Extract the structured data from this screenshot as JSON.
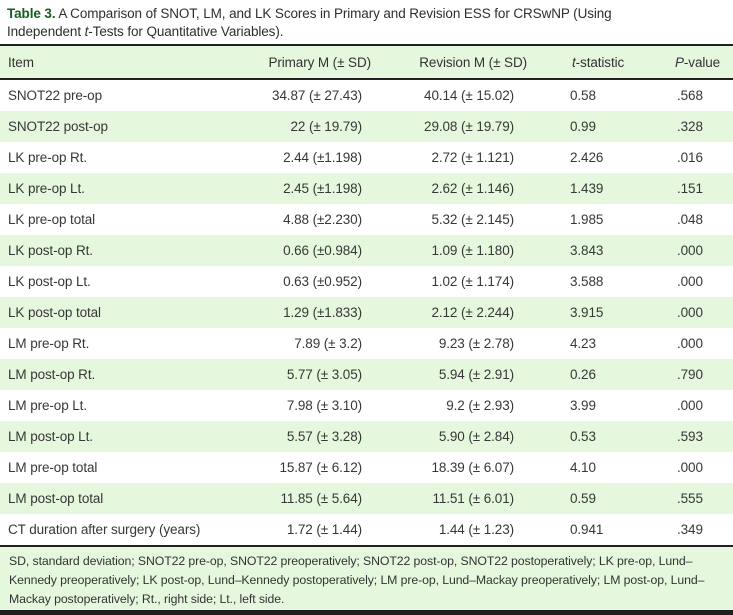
{
  "caption": {
    "label": "Table 3.",
    "before_italic": " A Comparison of SNOT, LM, and LK Scores in Primary and Revision ESS for CRSwNP (Using Independent ",
    "italic": "t",
    "after_italic": "-Tests for Quantitative Variables)."
  },
  "table": {
    "headers": {
      "item": "Item",
      "primary": "Primary M (± SD)",
      "revision": "Revision M (± SD)",
      "t_italic": "t",
      "t_rest": "-statistic",
      "p_italic": "P",
      "p_rest": "-value"
    },
    "rows": [
      {
        "item": "SNOT22 pre-op",
        "primary": "34.87 (± 27.43)",
        "revision": "40.14 (± 15.02)",
        "t": "0.58",
        "p": ".568"
      },
      {
        "item": "SNOT22 post-op",
        "primary": "22 (± 19.79)",
        "revision": "29.08 (± 19.79)",
        "t": "0.99",
        "p": ".328"
      },
      {
        "item": "LK pre-op Rt.",
        "primary": "2.44 (±1.198)",
        "revision": "2.72 (± 1.121)",
        "t": "2.426",
        "p": ".016"
      },
      {
        "item": "LK pre-op Lt.",
        "primary": "2.45 (±1.198)",
        "revision": "2.62 (± 1.146)",
        "t": "1.439",
        "p": ".151"
      },
      {
        "item": "LK pre-op total",
        "primary": "4.88 (±2.230)",
        "revision": "5.32 (± 2.145)",
        "t": "1.985",
        "p": ".048"
      },
      {
        "item": "LK post-op Rt.",
        "primary": "0.66 (±0.984)",
        "revision": "1.09 (± 1.180)",
        "t": "3.843",
        "p": ".000"
      },
      {
        "item": "LK post-op Lt.",
        "primary": "0.63 (±0.952)",
        "revision": "1.02 (± 1.174)",
        "t": "3.588",
        "p": ".000"
      },
      {
        "item": "LK post-op total",
        "primary": "1.29 (±1.833)",
        "revision": "2.12 (± 2.244)",
        "t": "3.915",
        "p": ".000"
      },
      {
        "item": "LM pre-op Rt.",
        "primary": "7.89 (± 3.2)",
        "revision": "9.23 (± 2.78)",
        "t": "4.23",
        "p": ".000"
      },
      {
        "item": "LM post-op Rt.",
        "primary": "5.77 (± 3.05)",
        "revision": "5.94 (± 2.91)",
        "t": "0.26",
        "p": ".790"
      },
      {
        "item": "LM pre-op Lt.",
        "primary": "7.98 (± 3.10)",
        "revision": "9.2 (± 2.93)",
        "t": "3.99",
        "p": ".000"
      },
      {
        "item": "LM post-op Lt.",
        "primary": "5.57 (± 3.28)",
        "revision": "5.90 (± 2.84)",
        "t": "0.53",
        "p": ".593"
      },
      {
        "item": "LM pre-op total",
        "primary": "15.87 (± 6.12)",
        "revision": "18.39 (± 6.07)",
        "t": "4.10",
        "p": ".000"
      },
      {
        "item": "LM post-op total",
        "primary": "11.85 (± 5.64)",
        "revision": "11.51 (± 6.01)",
        "t": "0.59",
        "p": ".555"
      },
      {
        "item": "CT duration after surgery (years)",
        "primary": "1.72 (± 1.44)",
        "revision": "1.44 (± 1.23)",
        "t": "0.941",
        "p": ".349"
      }
    ]
  },
  "footnote": "SD, standard deviation; SNOT22 pre-op, SNOT22 preoperatively; SNOT22 post-op, SNOT22 postoperatively; LK pre-op, Lund–Kennedy preoperatively; LK post-op, Lund–Kennedy postoperatively; LM pre-op, Lund–Mackay preoperatively; LM post-op, Lund–Mackay postoperatively; Rt., right side; Lt., left side.",
  "colors": {
    "stripe_green": "#e5f8dd",
    "caption_label_green": "#145e22",
    "rule_dark": "#212121"
  }
}
